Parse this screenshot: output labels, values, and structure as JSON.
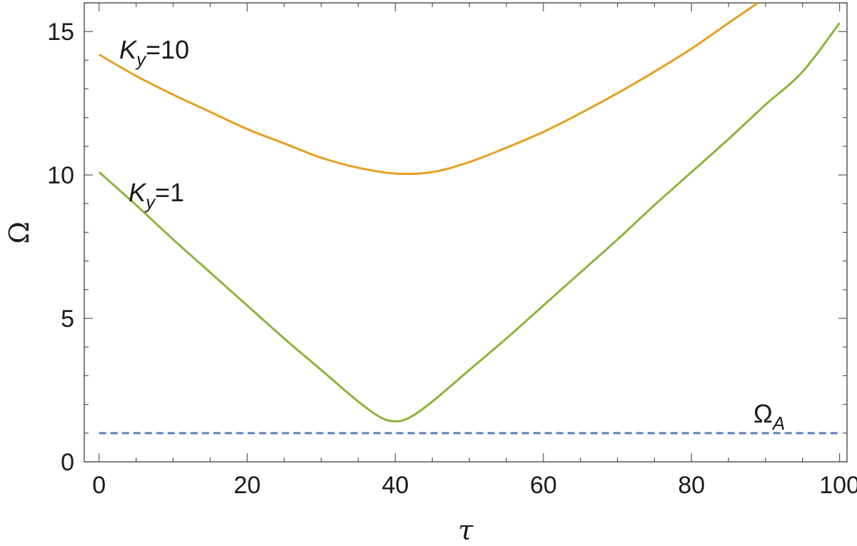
{
  "chart_data": {
    "type": "line",
    "xlabel": "τ",
    "ylabel": "Ω",
    "xlim": [
      -2,
      101
    ],
    "ylim": [
      0,
      16
    ],
    "x_ticks": [
      "0",
      "20",
      "40",
      "60",
      "80",
      "100"
    ],
    "y_ticks": [
      "0",
      "5",
      "10",
      "15"
    ],
    "grid": false,
    "series": [
      {
        "annotation": {
          "main": "K",
          "sub": "y",
          "rest": "=10"
        },
        "color": "#E69F1F",
        "dash": false,
        "x": [
          0,
          5,
          10,
          15,
          20,
          25,
          30,
          35,
          40,
          45,
          50,
          55,
          60,
          65,
          70,
          75,
          80,
          85,
          89
        ],
        "values": [
          14.2,
          13.45,
          12.8,
          12.2,
          11.6,
          11.1,
          10.6,
          10.25,
          10.05,
          10.1,
          10.45,
          10.95,
          11.5,
          12.15,
          12.85,
          13.6,
          14.4,
          15.3,
          16.0
        ]
      },
      {
        "annotation": {
          "main": "K",
          "sub": "y",
          "rest": "=1"
        },
        "color": "#8DB33A",
        "dash": false,
        "x": [
          0,
          5,
          10,
          15,
          20,
          25,
          30,
          35,
          38,
          40,
          42,
          45,
          50,
          55,
          60,
          65,
          70,
          75,
          80,
          85,
          90,
          95,
          100
        ],
        "values": [
          10.1,
          8.95,
          7.75,
          6.6,
          5.45,
          4.3,
          3.2,
          2.1,
          1.55,
          1.41,
          1.55,
          2.1,
          3.2,
          4.3,
          5.45,
          6.6,
          7.75,
          8.95,
          10.1,
          11.25,
          12.45,
          13.6,
          15.3
        ]
      },
      {
        "annotation": {
          "main": "Ω",
          "sub": "A",
          "rest": ""
        },
        "color": "#5B7FBF",
        "dash": true,
        "x": [
          0,
          100
        ],
        "values": [
          1.0,
          1.0
        ]
      }
    ]
  }
}
